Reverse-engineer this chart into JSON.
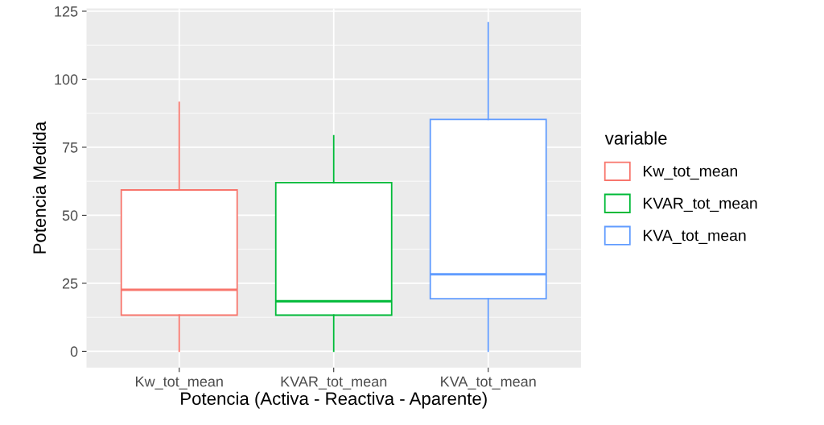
{
  "chart_data": {
    "type": "box",
    "xlabel": "Potencia (Activa - Reactiva - Aparente)",
    "ylabel": "Potencia Medida",
    "categories": [
      "Kw_tot_mean",
      "KVAR_tot_mean",
      "KVA_tot_mean"
    ],
    "series": [
      {
        "name": "Kw_tot_mean",
        "color": "#f8766d",
        "boxes": [
          {
            "low": 0,
            "q1": 13.3,
            "median": 22.6,
            "q3": 59.3,
            "high": 91.5
          },
          null,
          null
        ]
      },
      {
        "name": "KVAR_tot_mean",
        "color": "#00ba38",
        "boxes": [
          null,
          {
            "low": 0,
            "q1": 13.3,
            "median": 18.4,
            "q3": 62,
            "high": 79.2
          },
          null
        ]
      },
      {
        "name": "KVA_tot_mean",
        "color": "#619cff",
        "boxes": [
          null,
          null,
          {
            "low": 0,
            "q1": 19.3,
            "median": 28.3,
            "q3": 85.2,
            "high": 120.8
          }
        ]
      }
    ],
    "ylim": [
      -6,
      126
    ],
    "yticks": [
      0,
      25,
      50,
      75,
      100,
      125
    ],
    "grid": true,
    "legend": "right",
    "legend_title": "variable"
  }
}
